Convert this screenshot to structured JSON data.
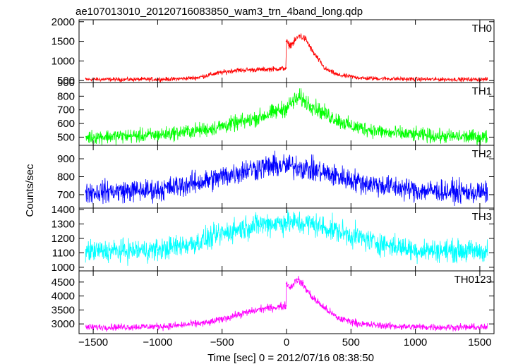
{
  "chart_data": {
    "type": "line",
    "title": "ae107013010_20120716083850_wam3_trn_4band_long.qdp",
    "xlabel": "Time [sec] 0 = 2012/07/16 08:38:50",
    "ylabel": "Counts/sec",
    "xlim": [
      -1610,
      1610
    ],
    "xticks": [
      -1500,
      -1000,
      -500,
      0,
      500,
      1000,
      1500
    ],
    "xtick_labels": [
      "−1500",
      "−1000",
      "−500",
      "0",
      "500",
      "1000",
      "1500"
    ],
    "grid": false,
    "panels": [
      {
        "name": "TH0",
        "color": "#ff0000",
        "ylim": [
          450,
          2050
        ],
        "yticks": [
          500,
          1000,
          1500,
          2000
        ],
        "x": [
          -1550,
          -1200,
          -900,
          -700,
          -550,
          -400,
          -200,
          -50,
          -5,
          0,
          20,
          50,
          100,
          150,
          200,
          300,
          400,
          600,
          900,
          1200,
          1550
        ],
        "values": [
          530,
          530,
          535,
          570,
          680,
          760,
          780,
          800,
          820,
          1500,
          1400,
          1450,
          1650,
          1550,
          1250,
          800,
          640,
          560,
          540,
          530,
          530
        ]
      },
      {
        "name": "TH1",
        "color": "#00ff00",
        "ylim": [
          440,
          900
        ],
        "yticks": [
          500,
          600,
          700,
          800,
          900
        ],
        "x": [
          -1550,
          -1000,
          -600,
          -300,
          -100,
          0,
          50,
          100,
          200,
          300,
          500,
          800,
          1200,
          1550
        ],
        "values": [
          500,
          515,
          560,
          620,
          680,
          715,
          760,
          790,
          730,
          670,
          580,
          530,
          505,
          500
        ]
      },
      {
        "name": "TH2",
        "color": "#0000ff",
        "ylim": [
          625,
          975
        ],
        "yticks": [
          700,
          800,
          900
        ],
        "x": [
          -1550,
          -1000,
          -600,
          -300,
          -100,
          0,
          100,
          300,
          600,
          1000,
          1550
        ],
        "values": [
          715,
          725,
          780,
          840,
          860,
          860,
          855,
          820,
          765,
          725,
          710
        ]
      },
      {
        "name": "TH3",
        "color": "#00ffff",
        "ylim": [
          975,
          1410
        ],
        "yticks": [
          1000,
          1100,
          1200,
          1300,
          1400
        ],
        "x": [
          -1550,
          -1000,
          -700,
          -400,
          -200,
          0,
          200,
          400,
          700,
          1000,
          1550
        ],
        "values": [
          1110,
          1120,
          1170,
          1260,
          1300,
          1310,
          1300,
          1250,
          1170,
          1120,
          1110
        ]
      },
      {
        "name": "TH0123",
        "color": "#ff00ff",
        "ylim": [
          2650,
          4900
        ],
        "yticks": [
          3000,
          3500,
          4000,
          4500
        ],
        "x": [
          -1550,
          -1200,
          -900,
          -600,
          -400,
          -200,
          -50,
          -5,
          0,
          30,
          80,
          120,
          160,
          200,
          300,
          400,
          600,
          900,
          1200,
          1550
        ],
        "values": [
          2880,
          2890,
          2920,
          3050,
          3300,
          3530,
          3620,
          3650,
          4450,
          4300,
          4600,
          4450,
          4200,
          3950,
          3550,
          3200,
          2980,
          2900,
          2880,
          2880
        ]
      }
    ]
  }
}
